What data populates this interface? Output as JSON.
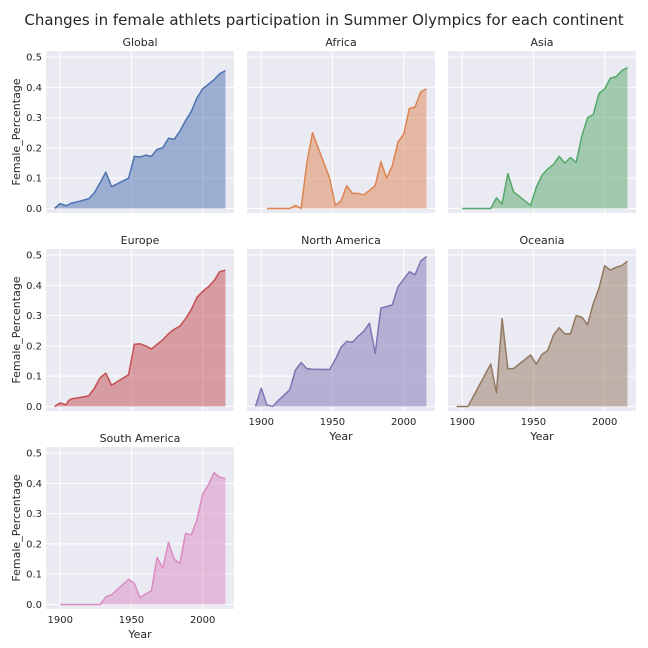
{
  "title": "Changes in female athlets participation in Summer Olympics for each continent",
  "colors": {
    "Global": "#4c72b0",
    "Africa": "#dd8452",
    "Asia": "#55a868",
    "Europe": "#c44e52",
    "North America": "#8172b3",
    "Oceania": "#937860",
    "South America": "#da8bc3",
    "background": "#eaeaf2"
  },
  "axes": {
    "xlabel": "Year",
    "ylabel": "Female_Percentage",
    "xticks": [
      "1900",
      "1950",
      "2000"
    ],
    "yticks": [
      "0.0",
      "0.1",
      "0.2",
      "0.3",
      "0.4",
      "0.5"
    ]
  },
  "chart_data": [
    {
      "type": "area",
      "title": "Global",
      "xlim": [
        1890,
        2022
      ],
      "ylim": [
        -0.015,
        0.52
      ],
      "x": [
        1896,
        1900,
        1904,
        1906,
        1908,
        1912,
        1920,
        1924,
        1928,
        1932,
        1936,
        1948,
        1952,
        1956,
        1960,
        1964,
        1968,
        1972,
        1976,
        1980,
        1984,
        1988,
        1992,
        1996,
        2000,
        2004,
        2008,
        2012,
        2016
      ],
      "values": [
        0.0,
        0.016,
        0.009,
        0.013,
        0.018,
        0.022,
        0.032,
        0.052,
        0.085,
        0.12,
        0.072,
        0.1,
        0.172,
        0.17,
        0.176,
        0.172,
        0.195,
        0.2,
        0.232,
        0.228,
        0.255,
        0.29,
        0.32,
        0.365,
        0.395,
        0.41,
        0.425,
        0.445,
        0.455
      ]
    },
    {
      "type": "area",
      "title": "Africa",
      "xlim": [
        1890,
        2022
      ],
      "ylim": [
        -0.015,
        0.52
      ],
      "x": [
        1904,
        1908,
        1912,
        1920,
        1924,
        1928,
        1932,
        1936,
        1948,
        1952,
        1956,
        1960,
        1964,
        1968,
        1972,
        1976,
        1980,
        1984,
        1988,
        1992,
        1996,
        2000,
        2004,
        2008,
        2012,
        2016
      ],
      "values": [
        0.0,
        0.0,
        0.0,
        0.0,
        0.01,
        0.0,
        0.15,
        0.25,
        0.1,
        0.01,
        0.025,
        0.075,
        0.05,
        0.05,
        0.045,
        0.06,
        0.075,
        0.155,
        0.1,
        0.14,
        0.22,
        0.245,
        0.33,
        0.335,
        0.385,
        0.395
      ]
    },
    {
      "type": "area",
      "title": "Asia",
      "xlim": [
        1890,
        2022
      ],
      "ylim": [
        -0.015,
        0.52
      ],
      "x": [
        1900,
        1904,
        1908,
        1912,
        1920,
        1924,
        1928,
        1932,
        1936,
        1948,
        1952,
        1956,
        1960,
        1964,
        1968,
        1972,
        1976,
        1980,
        1984,
        1988,
        1992,
        1996,
        2000,
        2004,
        2008,
        2012,
        2016
      ],
      "values": [
        0.0,
        0.0,
        0.0,
        0.0,
        0.0,
        0.035,
        0.015,
        0.115,
        0.055,
        0.01,
        0.07,
        0.11,
        0.13,
        0.145,
        0.172,
        0.15,
        0.168,
        0.152,
        0.24,
        0.3,
        0.31,
        0.38,
        0.395,
        0.43,
        0.435,
        0.455,
        0.465
      ]
    },
    {
      "type": "area",
      "title": "Europe",
      "xlim": [
        1890,
        2022
      ],
      "ylim": [
        -0.015,
        0.52
      ],
      "x": [
        1896,
        1900,
        1904,
        1906,
        1908,
        1912,
        1920,
        1924,
        1928,
        1932,
        1936,
        1948,
        1952,
        1956,
        1960,
        1964,
        1968,
        1972,
        1976,
        1980,
        1984,
        1988,
        1992,
        1996,
        2000,
        2004,
        2008,
        2012,
        2016
      ],
      "values": [
        0.0,
        0.012,
        0.005,
        0.02,
        0.025,
        0.028,
        0.035,
        0.06,
        0.095,
        0.11,
        0.07,
        0.105,
        0.205,
        0.207,
        0.2,
        0.19,
        0.205,
        0.22,
        0.24,
        0.255,
        0.265,
        0.29,
        0.32,
        0.36,
        0.38,
        0.395,
        0.415,
        0.445,
        0.45
      ]
    },
    {
      "type": "area",
      "title": "North America",
      "xlim": [
        1890,
        2022
      ],
      "ylim": [
        -0.015,
        0.52
      ],
      "x": [
        1896,
        1900,
        1904,
        1908,
        1912,
        1920,
        1924,
        1928,
        1932,
        1936,
        1948,
        1952,
        1956,
        1960,
        1964,
        1968,
        1972,
        1976,
        1980,
        1984,
        1988,
        1992,
        1996,
        2000,
        2004,
        2008,
        2012,
        2016
      ],
      "values": [
        0.0,
        0.06,
        0.005,
        0.0,
        0.02,
        0.055,
        0.12,
        0.145,
        0.125,
        0.123,
        0.122,
        0.155,
        0.195,
        0.215,
        0.212,
        0.232,
        0.248,
        0.275,
        0.175,
        0.325,
        0.33,
        0.335,
        0.395,
        0.42,
        0.445,
        0.435,
        0.48,
        0.495
      ]
    },
    {
      "type": "area",
      "title": "Oceania",
      "xlim": [
        1890,
        2022
      ],
      "ylim": [
        -0.015,
        0.52
      ],
      "x": [
        1896,
        1900,
        1904,
        1920,
        1924,
        1928,
        1932,
        1936,
        1948,
        1952,
        1956,
        1960,
        1964,
        1968,
        1972,
        1976,
        1980,
        1984,
        1988,
        1992,
        1996,
        2000,
        2004,
        2008,
        2012,
        2016
      ],
      "values": [
        0.0,
        0.0,
        0.0,
        0.14,
        0.045,
        0.29,
        0.125,
        0.125,
        0.17,
        0.14,
        0.172,
        0.185,
        0.235,
        0.26,
        0.24,
        0.24,
        0.3,
        0.295,
        0.27,
        0.34,
        0.39,
        0.465,
        0.45,
        0.46,
        0.465,
        0.48
      ]
    },
    {
      "type": "area",
      "title": "South America",
      "xlim": [
        1890,
        2022
      ],
      "ylim": [
        -0.015,
        0.52
      ],
      "x": [
        1900,
        1904,
        1908,
        1912,
        1920,
        1924,
        1928,
        1932,
        1936,
        1948,
        1952,
        1956,
        1960,
        1964,
        1968,
        1972,
        1976,
        1980,
        1984,
        1988,
        1992,
        1996,
        2000,
        2004,
        2008,
        2012,
        2016
      ],
      "values": [
        0.0,
        0.0,
        0.0,
        0.0,
        0.0,
        0.0,
        0.0,
        0.025,
        0.032,
        0.083,
        0.07,
        0.022,
        0.035,
        0.045,
        0.155,
        0.12,
        0.205,
        0.15,
        0.135,
        0.235,
        0.23,
        0.28,
        0.365,
        0.395,
        0.435,
        0.42,
        0.415
      ]
    }
  ]
}
